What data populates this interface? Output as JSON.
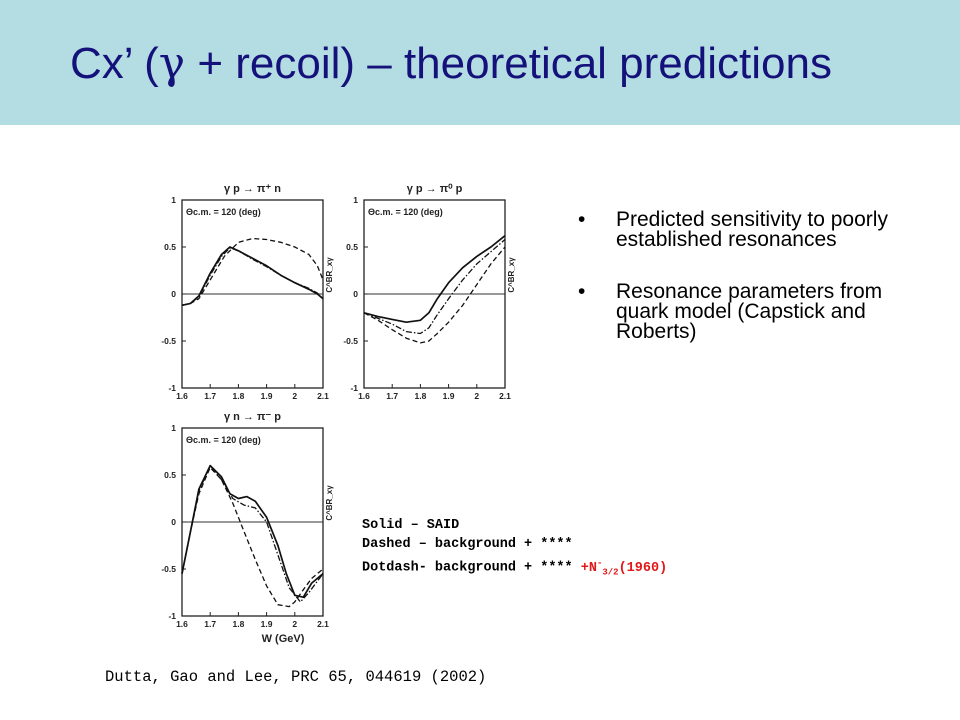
{
  "slide": {
    "title_prefix": "Cx’ (",
    "title_symbol": "γ",
    "title_suffix": " + recoil) – theoretical predictions",
    "bullets": [
      {
        "marker": "•",
        "text": "Predicted sensitivity to poorly established resonances"
      },
      {
        "marker": "•",
        "text": "Resonance parameters from quark model (Capstick and Roberts)"
      }
    ],
    "legend": {
      "solid": "Solid – SAID",
      "dashed": "Dashed – background + ****",
      "dotdash_main": "Dotdash- background + **** ",
      "dotdash_red_pre": "+N",
      "dotdash_red_sup": "-",
      "dotdash_red_sub": "3/2",
      "dotdash_red_post": "(1960)"
    },
    "citation": "Dutta, Gao and Lee, PRC 65, 044619 (2002)",
    "colors": {
      "header_bg": "#b4dde3",
      "title": "#14127a",
      "highlight": "#e01818"
    }
  },
  "chart_data": [
    {
      "type": "line",
      "title": "γ p → π⁺ n",
      "annotation": "Θc.m. = 120 (deg)",
      "xlabel": "",
      "ylabel": "C^BR_xγ",
      "xlim": [
        1.6,
        2.1
      ],
      "ylim": [
        -1,
        1
      ],
      "x_ticks": [
        "1.6",
        "1.7",
        "1.8",
        "1.9",
        "2",
        "2.1"
      ],
      "y_ticks": [
        "1",
        "0.5",
        "0",
        "-0.5",
        "-1"
      ],
      "series": [
        {
          "style": "solid",
          "x": [
            1.6,
            1.63,
            1.66,
            1.7,
            1.74,
            1.77,
            1.8,
            1.85,
            1.9,
            1.95,
            2.0,
            2.05,
            2.08,
            2.1
          ],
          "y": [
            -0.12,
            -0.1,
            -0.02,
            0.22,
            0.42,
            0.5,
            0.46,
            0.38,
            0.3,
            0.2,
            0.12,
            0.05,
            0.0,
            -0.05
          ]
        },
        {
          "style": "dashed",
          "x": [
            1.6,
            1.63,
            1.66,
            1.7,
            1.75,
            1.8,
            1.85,
            1.9,
            1.95,
            2.0,
            2.05,
            2.08,
            2.1
          ],
          "y": [
            -0.12,
            -0.1,
            -0.05,
            0.15,
            0.4,
            0.55,
            0.59,
            0.58,
            0.55,
            0.5,
            0.42,
            0.3,
            0.15
          ]
        },
        {
          "style": "dotdash",
          "x": [
            1.6,
            1.63,
            1.66,
            1.7,
            1.74,
            1.77,
            1.8,
            1.85,
            1.9,
            1.95,
            2.0,
            2.05,
            2.08,
            2.1
          ],
          "y": [
            -0.12,
            -0.1,
            -0.03,
            0.2,
            0.4,
            0.49,
            0.46,
            0.37,
            0.29,
            0.2,
            0.12,
            0.06,
            0.01,
            -0.05
          ]
        }
      ]
    },
    {
      "type": "line",
      "title": "γ p → π⁰ p",
      "annotation": "Θc.m. = 120 (deg)",
      "xlabel": "",
      "ylabel": "C^BR_xγ",
      "xlim": [
        1.6,
        2.1
      ],
      "ylim": [
        -1,
        1
      ],
      "x_ticks": [
        "1.6",
        "1.7",
        "1.8",
        "1.9",
        "2",
        "2.1"
      ],
      "y_ticks": [
        "1",
        "0.5",
        "0",
        "-0.5",
        "-1"
      ],
      "series": [
        {
          "style": "solid",
          "x": [
            1.6,
            1.65,
            1.7,
            1.75,
            1.8,
            1.83,
            1.86,
            1.9,
            1.95,
            2.0,
            2.05,
            2.1
          ],
          "y": [
            -0.2,
            -0.24,
            -0.27,
            -0.3,
            -0.28,
            -0.2,
            -0.05,
            0.12,
            0.28,
            0.4,
            0.5,
            0.62
          ]
        },
        {
          "style": "dashed",
          "x": [
            1.6,
            1.65,
            1.7,
            1.75,
            1.8,
            1.83,
            1.86,
            1.9,
            1.95,
            2.0,
            2.05,
            2.1
          ],
          "y": [
            -0.2,
            -0.28,
            -0.38,
            -0.47,
            -0.52,
            -0.5,
            -0.42,
            -0.3,
            -0.12,
            0.1,
            0.32,
            0.5
          ]
        },
        {
          "style": "dotdash",
          "x": [
            1.6,
            1.65,
            1.7,
            1.75,
            1.8,
            1.83,
            1.86,
            1.9,
            1.95,
            2.0,
            2.05,
            2.1
          ],
          "y": [
            -0.2,
            -0.26,
            -0.32,
            -0.4,
            -0.42,
            -0.36,
            -0.22,
            -0.05,
            0.15,
            0.32,
            0.45,
            0.58
          ]
        }
      ]
    },
    {
      "type": "line",
      "title": "γ n → π⁻ p",
      "annotation": "Θc.m. = 120 (deg)",
      "xlabel": "W (GeV)",
      "ylabel": "C^BR_xγ",
      "xlim": [
        1.6,
        2.1
      ],
      "ylim": [
        -1,
        1
      ],
      "x_ticks": [
        "1.6",
        "1.7",
        "1.8",
        "1.9",
        "2",
        "2.1"
      ],
      "y_ticks": [
        "1",
        "0.5",
        "0",
        "-0.5",
        "-1"
      ],
      "series": [
        {
          "style": "solid",
          "x": [
            1.6,
            1.63,
            1.66,
            1.7,
            1.74,
            1.77,
            1.8,
            1.83,
            1.86,
            1.9,
            1.94,
            1.97,
            2.0,
            2.03,
            2.06,
            2.1
          ],
          "y": [
            -0.55,
            -0.1,
            0.35,
            0.6,
            0.48,
            0.3,
            0.25,
            0.27,
            0.22,
            0.05,
            -0.25,
            -0.55,
            -0.78,
            -0.8,
            -0.65,
            -0.55
          ]
        },
        {
          "style": "dashed",
          "x": [
            1.6,
            1.63,
            1.66,
            1.7,
            1.74,
            1.78,
            1.82,
            1.86,
            1.9,
            1.94,
            1.98,
            2.0,
            2.03,
            2.06,
            2.1
          ],
          "y": [
            -0.55,
            -0.1,
            0.3,
            0.58,
            0.45,
            0.2,
            -0.1,
            -0.4,
            -0.68,
            -0.88,
            -0.9,
            -0.85,
            -0.72,
            -0.6,
            -0.5
          ]
        },
        {
          "style": "dotdash",
          "x": [
            1.6,
            1.63,
            1.66,
            1.7,
            1.74,
            1.78,
            1.82,
            1.86,
            1.9,
            1.94,
            1.98,
            2.02,
            2.05,
            2.1
          ],
          "y": [
            -0.55,
            -0.1,
            0.33,
            0.6,
            0.45,
            0.25,
            0.18,
            0.15,
            0.0,
            -0.35,
            -0.7,
            -0.85,
            -0.75,
            -0.55
          ]
        }
      ]
    }
  ]
}
